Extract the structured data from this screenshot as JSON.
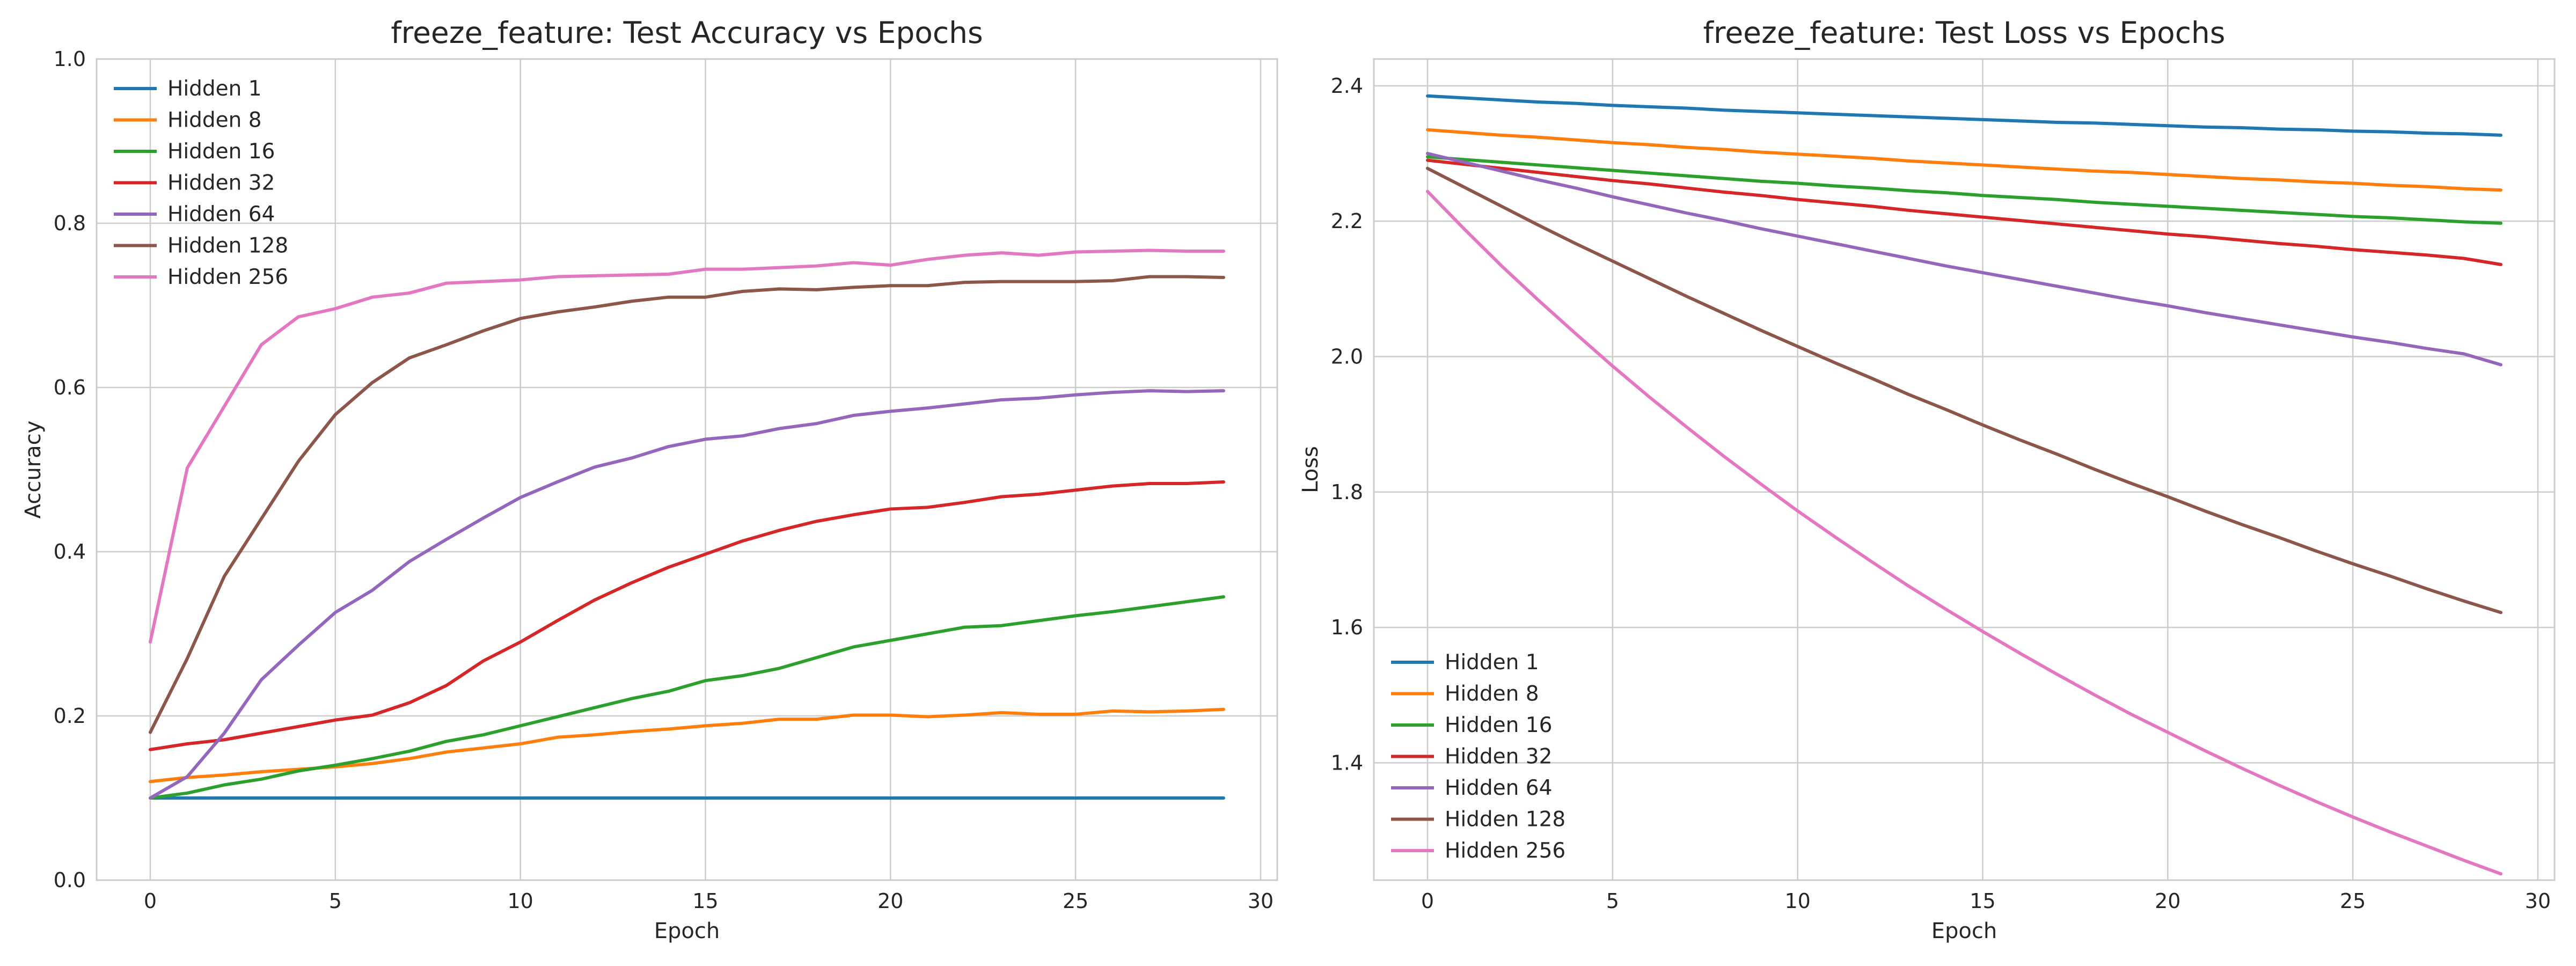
{
  "chart_data": [
    {
      "type": "line",
      "title": "freeze_feature: Test Accuracy vs Epochs",
      "xlabel": "Epoch",
      "ylabel": "Accuracy",
      "xlim": [
        -1.45,
        30.45
      ],
      "ylim": [
        0.0,
        1.0
      ],
      "xticks": [
        0,
        5,
        10,
        15,
        20,
        25,
        30
      ],
      "yticks": [
        0.0,
        0.2,
        0.4,
        0.6,
        0.8,
        1.0
      ],
      "xtick_labels": [
        "0",
        "5",
        "10",
        "15",
        "20",
        "25",
        "30"
      ],
      "ytick_labels": [
        "0.0",
        "0.2",
        "0.4",
        "0.6",
        "0.8",
        "1.0"
      ],
      "grid": true,
      "legend_position": "top-left",
      "x": [
        0,
        1,
        2,
        3,
        4,
        5,
        6,
        7,
        8,
        9,
        10,
        11,
        12,
        13,
        14,
        15,
        16,
        17,
        18,
        19,
        20,
        21,
        22,
        23,
        24,
        25,
        26,
        27,
        28,
        29
      ],
      "series": [
        {
          "name": "Hidden 1",
          "color": "#1f77b4",
          "values": [
            0.1,
            0.1,
            0.1,
            0.1,
            0.1,
            0.1,
            0.1,
            0.1,
            0.1,
            0.1,
            0.1,
            0.1,
            0.1,
            0.1,
            0.1,
            0.1,
            0.1,
            0.1,
            0.1,
            0.1,
            0.1,
            0.1,
            0.1,
            0.1,
            0.1,
            0.1,
            0.1,
            0.1,
            0.1,
            0.1
          ]
        },
        {
          "name": "Hidden 8",
          "color": "#ff7f0e",
          "values": [
            0.12,
            0.125,
            0.128,
            0.132,
            0.135,
            0.138,
            0.142,
            0.148,
            0.156,
            0.161,
            0.166,
            0.174,
            0.177,
            0.181,
            0.184,
            0.188,
            0.191,
            0.196,
            0.196,
            0.201,
            0.201,
            0.199,
            0.201,
            0.204,
            0.202,
            0.202,
            0.206,
            0.205,
            0.206,
            0.208
          ]
        },
        {
          "name": "Hidden 16",
          "color": "#2ca02c",
          "values": [
            0.1,
            0.106,
            0.116,
            0.123,
            0.133,
            0.14,
            0.148,
            0.157,
            0.169,
            0.177,
            0.188,
            0.199,
            0.21,
            0.221,
            0.23,
            0.243,
            0.249,
            0.258,
            0.271,
            0.284,
            0.292,
            0.3,
            0.308,
            0.31,
            0.316,
            0.322,
            0.327,
            0.333,
            0.339,
            0.345
          ]
        },
        {
          "name": "Hidden 32",
          "color": "#d62728",
          "values": [
            0.159,
            0.166,
            0.171,
            0.179,
            0.187,
            0.195,
            0.201,
            0.216,
            0.237,
            0.267,
            0.29,
            0.316,
            0.341,
            0.362,
            0.381,
            0.397,
            0.413,
            0.426,
            0.437,
            0.445,
            0.452,
            0.454,
            0.46,
            0.467,
            0.47,
            0.475,
            0.48,
            0.483,
            0.483,
            0.485
          ]
        },
        {
          "name": "Hidden 64",
          "color": "#9467bd",
          "values": [
            0.1,
            0.126,
            0.179,
            0.244,
            0.286,
            0.326,
            0.353,
            0.388,
            0.415,
            0.441,
            0.466,
            0.485,
            0.503,
            0.514,
            0.528,
            0.537,
            0.541,
            0.55,
            0.556,
            0.566,
            0.571,
            0.575,
            0.58,
            0.585,
            0.587,
            0.591,
            0.594,
            0.596,
            0.595,
            0.596
          ]
        },
        {
          "name": "Hidden 128",
          "color": "#8c564b",
          "values": [
            0.18,
            0.27,
            0.37,
            0.44,
            0.51,
            0.567,
            0.606,
            0.636,
            0.652,
            0.669,
            0.684,
            0.692,
            0.698,
            0.705,
            0.71,
            0.71,
            0.717,
            0.72,
            0.719,
            0.722,
            0.724,
            0.724,
            0.728,
            0.729,
            0.729,
            0.729,
            0.73,
            0.735,
            0.735,
            0.734
          ]
        },
        {
          "name": "Hidden 256",
          "color": "#e377c2",
          "values": [
            0.29,
            0.502,
            0.577,
            0.652,
            0.686,
            0.696,
            0.71,
            0.715,
            0.727,
            0.729,
            0.731,
            0.735,
            0.736,
            0.737,
            0.738,
            0.744,
            0.744,
            0.746,
            0.748,
            0.752,
            0.749,
            0.756,
            0.761,
            0.764,
            0.761,
            0.765,
            0.766,
            0.767,
            0.766,
            0.766
          ]
        }
      ]
    },
    {
      "type": "line",
      "title": "freeze_feature: Test Loss vs Epochs",
      "xlabel": "Epoch",
      "ylabel": "Loss",
      "xlim": [
        -1.45,
        30.45
      ],
      "ylim": [
        1.2267,
        2.4395
      ],
      "xticks": [
        0,
        5,
        10,
        15,
        20,
        25,
        30
      ],
      "yticks": [
        1.4,
        1.6,
        1.8,
        2.0,
        2.2,
        2.4
      ],
      "xtick_labels": [
        "0",
        "5",
        "10",
        "15",
        "20",
        "25",
        "30"
      ],
      "ytick_labels": [
        "1.4",
        "1.6",
        "1.8",
        "2.0",
        "2.2",
        "2.4"
      ],
      "grid": true,
      "legend_position": "bottom-left",
      "x": [
        0,
        1,
        2,
        3,
        4,
        5,
        6,
        7,
        8,
        9,
        10,
        11,
        12,
        13,
        14,
        15,
        16,
        17,
        18,
        19,
        20,
        21,
        22,
        23,
        24,
        25,
        26,
        27,
        28,
        29
      ],
      "series": [
        {
          "name": "Hidden 1",
          "color": "#1f77b4",
          "values": [
            2.385,
            2.382,
            2.379,
            2.376,
            2.374,
            2.371,
            2.369,
            2.367,
            2.364,
            2.362,
            2.36,
            2.358,
            2.356,
            2.354,
            2.352,
            2.35,
            2.348,
            2.346,
            2.345,
            2.343,
            2.341,
            2.339,
            2.338,
            2.336,
            2.335,
            2.333,
            2.332,
            2.33,
            2.329,
            2.327
          ]
        },
        {
          "name": "Hidden 8",
          "color": "#ff7f0e",
          "values": [
            2.335,
            2.331,
            2.327,
            2.324,
            2.32,
            2.316,
            2.313,
            2.309,
            2.306,
            2.302,
            2.299,
            2.296,
            2.293,
            2.289,
            2.286,
            2.283,
            2.28,
            2.277,
            2.274,
            2.272,
            2.269,
            2.266,
            2.263,
            2.261,
            2.258,
            2.256,
            2.253,
            2.251,
            2.248,
            2.246
          ]
        },
        {
          "name": "Hidden 16",
          "color": "#2ca02c",
          "values": [
            2.295,
            2.291,
            2.287,
            2.283,
            2.279,
            2.275,
            2.271,
            2.267,
            2.263,
            2.259,
            2.256,
            2.252,
            2.249,
            2.245,
            2.242,
            2.238,
            2.235,
            2.232,
            2.228,
            2.225,
            2.222,
            2.219,
            2.216,
            2.213,
            2.21,
            2.207,
            2.205,
            2.202,
            2.199,
            2.197
          ]
        },
        {
          "name": "Hidden 32",
          "color": "#d62728",
          "values": [
            2.29,
            2.284,
            2.278,
            2.272,
            2.266,
            2.26,
            2.255,
            2.249,
            2.243,
            2.238,
            2.232,
            2.227,
            2.222,
            2.216,
            2.211,
            2.206,
            2.201,
            2.196,
            2.191,
            2.186,
            2.181,
            2.177,
            2.172,
            2.167,
            2.163,
            2.158,
            2.154,
            2.15,
            2.145,
            2.136
          ]
        },
        {
          "name": "Hidden 64",
          "color": "#9467bd",
          "values": [
            2.3,
            2.287,
            2.274,
            2.261,
            2.249,
            2.236,
            2.224,
            2.212,
            2.201,
            2.189,
            2.178,
            2.167,
            2.156,
            2.145,
            2.134,
            2.124,
            2.114,
            2.104,
            2.094,
            2.084,
            2.075,
            2.065,
            2.056,
            2.047,
            2.038,
            2.029,
            2.021,
            2.012,
            2.004,
            1.988
          ]
        },
        {
          "name": "Hidden 128",
          "color": "#8c564b",
          "values": [
            2.278,
            2.25,
            2.222,
            2.194,
            2.167,
            2.141,
            2.115,
            2.089,
            2.064,
            2.039,
            2.015,
            1.991,
            1.968,
            1.944,
            1.922,
            1.899,
            1.877,
            1.856,
            1.834,
            1.813,
            1.793,
            1.772,
            1.752,
            1.733,
            1.713,
            1.694,
            1.676,
            1.657,
            1.639,
            1.622
          ]
        },
        {
          "name": "Hidden 256",
          "color": "#e377c2",
          "values": [
            2.244,
            2.188,
            2.134,
            2.083,
            2.034,
            1.986,
            1.94,
            1.896,
            1.853,
            1.812,
            1.772,
            1.734,
            1.697,
            1.661,
            1.627,
            1.594,
            1.562,
            1.531,
            1.501,
            1.472,
            1.445,
            1.418,
            1.392,
            1.367,
            1.343,
            1.32,
            1.298,
            1.277,
            1.256,
            1.236
          ]
        }
      ]
    }
  ]
}
